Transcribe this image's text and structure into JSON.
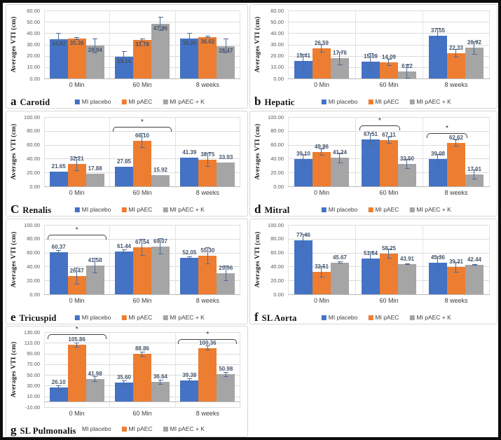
{
  "figure": {
    "background": "#ffffff",
    "frame_color": "#0d0d0d",
    "ylabel": "Averages VTI (cm)",
    "series_colors": {
      "MI placebo": "#4472C4",
      "MI pAEC": "#ED7D31",
      "MI pAEC + K": "#A5A5A5"
    },
    "error_bar_color": "#4e6b96",
    "data_label_color": "#44546A"
  },
  "chart_data": [
    {
      "type": "bar",
      "panel_letter": "a",
      "title": "Carotid",
      "ylabel": "Averages VTI (cm)",
      "ylim": [
        0,
        60
      ],
      "ytick_step": 10,
      "categories": [
        "0 Min",
        "60 Min",
        "8 weeks"
      ],
      "series": [
        {
          "name": "MI placebo",
          "color": "#4472C4",
          "values": [
            34.82,
            19.14,
            35.3
          ],
          "errors": [
            5.5,
            5.2,
            5.2
          ]
        },
        {
          "name": "MI pAEC",
          "color": "#ED7D31",
          "values": [
            35.36,
            33.78,
            36.62
          ],
          "errors": [
            1.2,
            1.5,
            1.0
          ]
        },
        {
          "name": "MI pAEC + K",
          "color": "#A5A5A5",
          "values": [
            28.94,
            47.96,
            28.47
          ],
          "errors": [
            6.5,
            6.2,
            6.5
          ]
        }
      ],
      "labels_inside": true,
      "legend_swatches": [
        true,
        true,
        true
      ],
      "brackets": []
    },
    {
      "type": "bar",
      "panel_letter": "b",
      "title": "Hepatic",
      "ylabel": "Averages VTI (cm)",
      "ylim": [
        0,
        60
      ],
      "ytick_step": 10,
      "categories": [
        "0 Min",
        "60 Min",
        "8 weeks"
      ],
      "series": [
        {
          "name": "MI placebo",
          "color": "#4472C4",
          "values": [
            15.41,
            15.09,
            37.55
          ],
          "errors": [
            6.5,
            7.0,
            6.8
          ]
        },
        {
          "name": "MI pAEC",
          "color": "#ED7D31",
          "values": [
            26.59,
            14.09,
            22.33
          ],
          "errors": [
            3.5,
            3.0,
            3.8
          ]
        },
        {
          "name": "MI pAEC + K",
          "color": "#A5A5A5",
          "values": [
            17.76,
            6.12,
            26.92
          ],
          "errors": [
            6.0,
            6.5,
            6.0
          ]
        }
      ],
      "labels_inside": false,
      "legend_swatches": [
        true,
        true,
        true
      ],
      "brackets": []
    },
    {
      "type": "bar",
      "panel_letter": "C",
      "title": "Renalis",
      "ylabel": "Averages VTI (cm)",
      "ylim": [
        0,
        100
      ],
      "ytick_step": 20,
      "categories": [
        "0 Min",
        "60 Min",
        "8 weeks"
      ],
      "series": [
        {
          "name": "MI placebo",
          "color": "#4472C4",
          "values": [
            21.65,
            27.85,
            41.39
          ],
          "errors": [
            0,
            0,
            0
          ]
        },
        {
          "name": "MI pAEC",
          "color": "#ED7D31",
          "values": [
            32.21,
            66.1,
            38.75
          ],
          "errors": [
            10.5,
            10.5,
            10.0
          ]
        },
        {
          "name": "MI pAEC + K",
          "color": "#A5A5A5",
          "values": [
            17.88,
            15.92,
            33.93
          ],
          "errors": [
            0,
            0,
            0
          ]
        }
      ],
      "labels_inside": false,
      "legend_swatches": [
        true,
        true,
        true
      ],
      "brackets": [
        {
          "group": 1,
          "from": 0,
          "to": 2,
          "y": 86,
          "star": "*"
        }
      ]
    },
    {
      "type": "bar",
      "panel_letter": "d",
      "title": "Mitral",
      "ylabel": "Averages VTI (cm)",
      "ylim": [
        0,
        100
      ],
      "ytick_step": 20,
      "categories": [
        "0 Min",
        "60 Min",
        "8 weeks"
      ],
      "series": [
        {
          "name": "MI placebo",
          "color": "#4472C4",
          "values": [
            39.1,
            67.51,
            39.08
          ],
          "errors": [
            7.5,
            9.0,
            7.5
          ]
        },
        {
          "name": "MI pAEC",
          "color": "#ED7D31",
          "values": [
            49.86,
            67.11,
            62.62
          ],
          "errors": [
            5.0,
            5.0,
            5.0
          ]
        },
        {
          "name": "MI pAEC + K",
          "color": "#A5A5A5",
          "values": [
            41.24,
            32.5,
            17.01
          ],
          "errors": [
            7.5,
            7.0,
            7.0
          ]
        }
      ],
      "labels_inside": false,
      "legend_swatches": [
        true,
        true,
        true
      ],
      "brackets": [
        {
          "group": 1,
          "from": 0,
          "to": 1,
          "y": 88,
          "star": "*"
        },
        {
          "group": 2,
          "from": 0,
          "to": 1,
          "y": 77,
          "star": "*"
        }
      ]
    },
    {
      "type": "bar",
      "panel_letter": "e",
      "title": "Tricuspid",
      "ylabel": "Averages VTI (cm)",
      "ylim": [
        0,
        100
      ],
      "ytick_step": 20,
      "categories": [
        "0 Min",
        "60 Min",
        "8 weeks"
      ],
      "series": [
        {
          "name": "MI placebo",
          "color": "#4472C4",
          "values": [
            60.37,
            61.44,
            52.05
          ],
          "errors": [
            3.0,
            3.5,
            3.0
          ]
        },
        {
          "name": "MI pAEC",
          "color": "#ED7D31",
          "values": [
            26.47,
            67.54,
            55.3
          ],
          "errors": [
            12.0,
            12.0,
            12.0
          ]
        },
        {
          "name": "MI pAEC + K",
          "color": "#A5A5A5",
          "values": [
            41.58,
            69.07,
            29.96
          ],
          "errors": [
            11.0,
            12.0,
            11.0
          ]
        }
      ],
      "labels_inside": false,
      "legend_swatches": [
        true,
        true,
        true
      ],
      "brackets": [
        {
          "group": 0,
          "from": 0,
          "to": 2,
          "y": 86,
          "star": "*"
        }
      ]
    },
    {
      "type": "bar",
      "panel_letter": "f",
      "title": "SL Aorta",
      "ylabel": "Averages VTI (cm)",
      "ylim": [
        0,
        100
      ],
      "ytick_step": 20,
      "categories": [
        "0 Min",
        "60 Min",
        "8 weeks"
      ],
      "series": [
        {
          "name": "MI placebo",
          "color": "#4472C4",
          "values": [
            77.46,
            51.64,
            45.36
          ],
          "errors": [
            9.5,
            9.5,
            9.5
          ]
        },
        {
          "name": "MI pAEC",
          "color": "#ED7D31",
          "values": [
            32.51,
            58.25,
            39.31
          ],
          "errors": [
            8.0,
            7.0,
            7.5
          ]
        },
        {
          "name": "MI pAEC + K",
          "color": "#A5A5A5",
          "values": [
            45.67,
            43.91,
            42.44
          ],
          "errors": [
            1.5,
            1.0,
            1.0
          ]
        }
      ],
      "labels_inside": false,
      "legend_swatches": [
        true,
        true,
        true
      ],
      "brackets": []
    },
    {
      "type": "bar",
      "panel_letter": "g",
      "title": "SL Pulmonalis",
      "ylabel": "Averages VTI (cm)",
      "ylim": [
        -10,
        130
      ],
      "ytick_step": 20,
      "categories": [
        "0 Min",
        "60 Min",
        "8 weeks"
      ],
      "series": [
        {
          "name": "MI placebo",
          "color": "#4472C4",
          "values": [
            26.1,
            35.6,
            39.38
          ],
          "errors": [
            4.5,
            4.5,
            4.0
          ]
        },
        {
          "name": "MI pAEC",
          "color": "#ED7D31",
          "values": [
            105.86,
            88.86,
            100.36
          ],
          "errors": [
            5.0,
            5.0,
            5.0
          ]
        },
        {
          "name": "MI pAEC + K",
          "color": "#A5A5A5",
          "values": [
            41.98,
            36.64,
            50.98
          ],
          "errors": [
            5.0,
            4.5,
            5.0
          ]
        }
      ],
      "labels_inside": false,
      "legend_swatches": [
        false,
        true,
        true
      ],
      "legend_after_name": true,
      "brackets": [
        {
          "group": 0,
          "from": 0,
          "to": 2,
          "y": 126,
          "star": "*"
        },
        {
          "group": 2,
          "from": 0,
          "to": 2,
          "y": 117,
          "star": "*"
        }
      ]
    }
  ]
}
